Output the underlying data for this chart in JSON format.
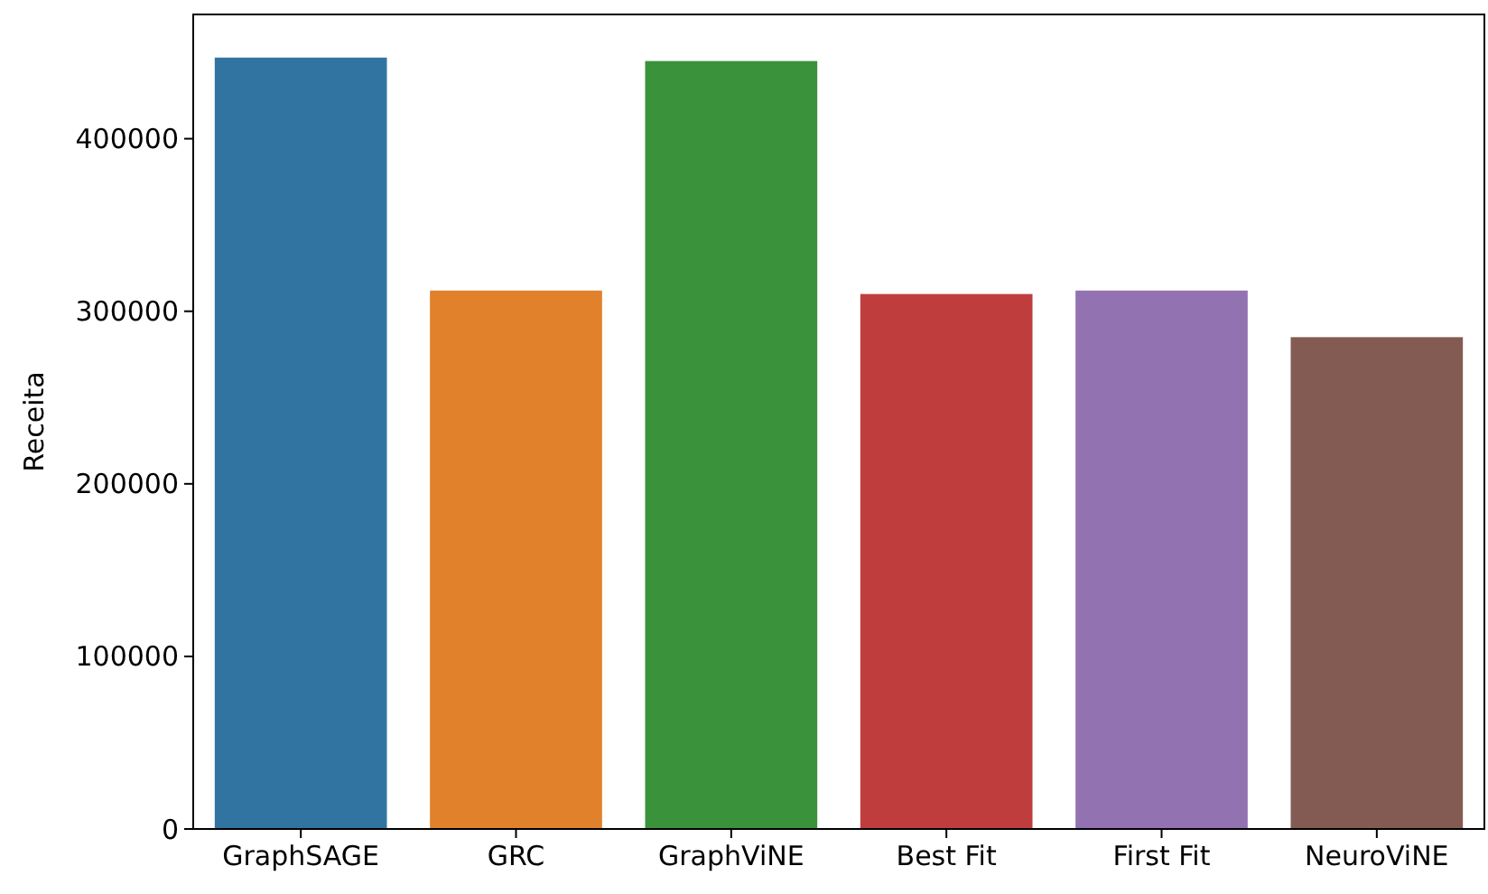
{
  "chart_data": {
    "type": "bar",
    "ylabel": "Receita",
    "categories": [
      "GraphSAGE",
      "GRC",
      "GraphViNE",
      "Best Fit",
      "First Fit",
      "NeuroViNE"
    ],
    "values": [
      447000,
      312000,
      445000,
      310000,
      312000,
      285000
    ],
    "colors": [
      "#3274a1",
      "#e1812c",
      "#3a923a",
      "#c03d3e",
      "#9372b2",
      "#845b53"
    ],
    "ylim": [
      0,
      472000
    ],
    "yticks": [
      0,
      100000,
      200000,
      300000,
      400000
    ],
    "grid": false
  }
}
